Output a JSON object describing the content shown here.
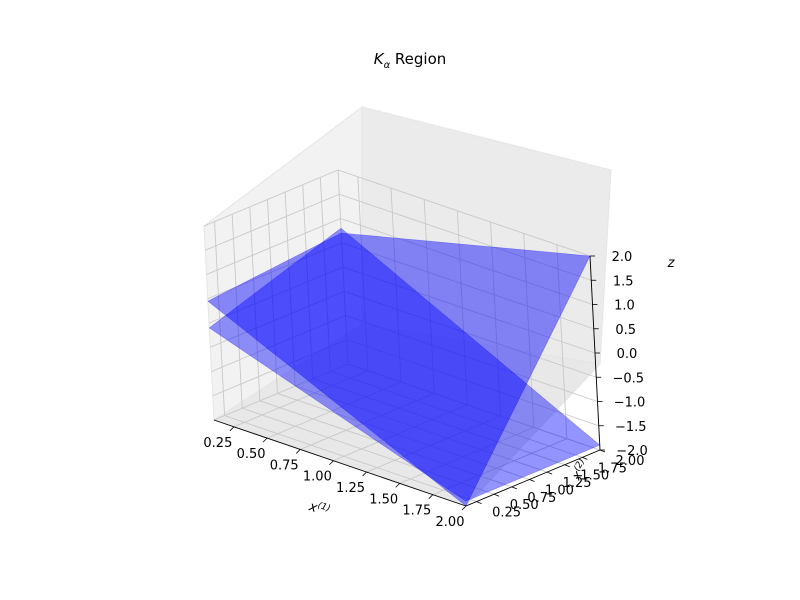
{
  "chart_data": {
    "type": "surface3d",
    "title": {
      "symbol": "K",
      "subscript": "α",
      "rest": " Region"
    },
    "xlabel": {
      "base": "x",
      "sup": "(1)"
    },
    "ylabel": {
      "base": "x",
      "sup": "(2)"
    },
    "zlabel": "z",
    "xlim": [
      0.1,
      2.0
    ],
    "ylim": [
      0.1,
      2.0
    ],
    "zlim": [
      -2.0,
      2.0
    ],
    "x_ticks": [
      "0.25",
      "0.50",
      "0.75",
      "1.00",
      "1.25",
      "1.50",
      "1.75",
      "2.00"
    ],
    "y_ticks": [
      "0.25",
      "0.50",
      "0.75",
      "1.00",
      "1.25",
      "1.50",
      "1.75",
      "2.00"
    ],
    "z_ticks": [
      "−2.0",
      "−1.5",
      "−1.0",
      "−0.5",
      "0.0",
      "0.5",
      "1.0",
      "1.5",
      "2.0"
    ],
    "grid": true,
    "surface_color": "#0000ff",
    "surfaces": [
      {
        "name": "upper",
        "corners": [
          {
            "x": 0.1,
            "y": 0.1,
            "z": 0.45
          },
          {
            "x": 2.0,
            "y": 0.1,
            "z": -2.0
          },
          {
            "x": 2.0,
            "y": 2.0,
            "z": 2.0
          },
          {
            "x": 0.1,
            "y": 2.0,
            "z": 0.7
          }
        ]
      },
      {
        "name": "lower",
        "corners": [
          {
            "x": 0.1,
            "y": 0.1,
            "z": -0.1
          },
          {
            "x": 2.0,
            "y": 0.1,
            "z": -1.9
          },
          {
            "x": 2.0,
            "y": 2.0,
            "z": -1.9
          },
          {
            "x": 0.1,
            "y": 2.0,
            "z": 0.8
          }
        ]
      }
    ]
  }
}
